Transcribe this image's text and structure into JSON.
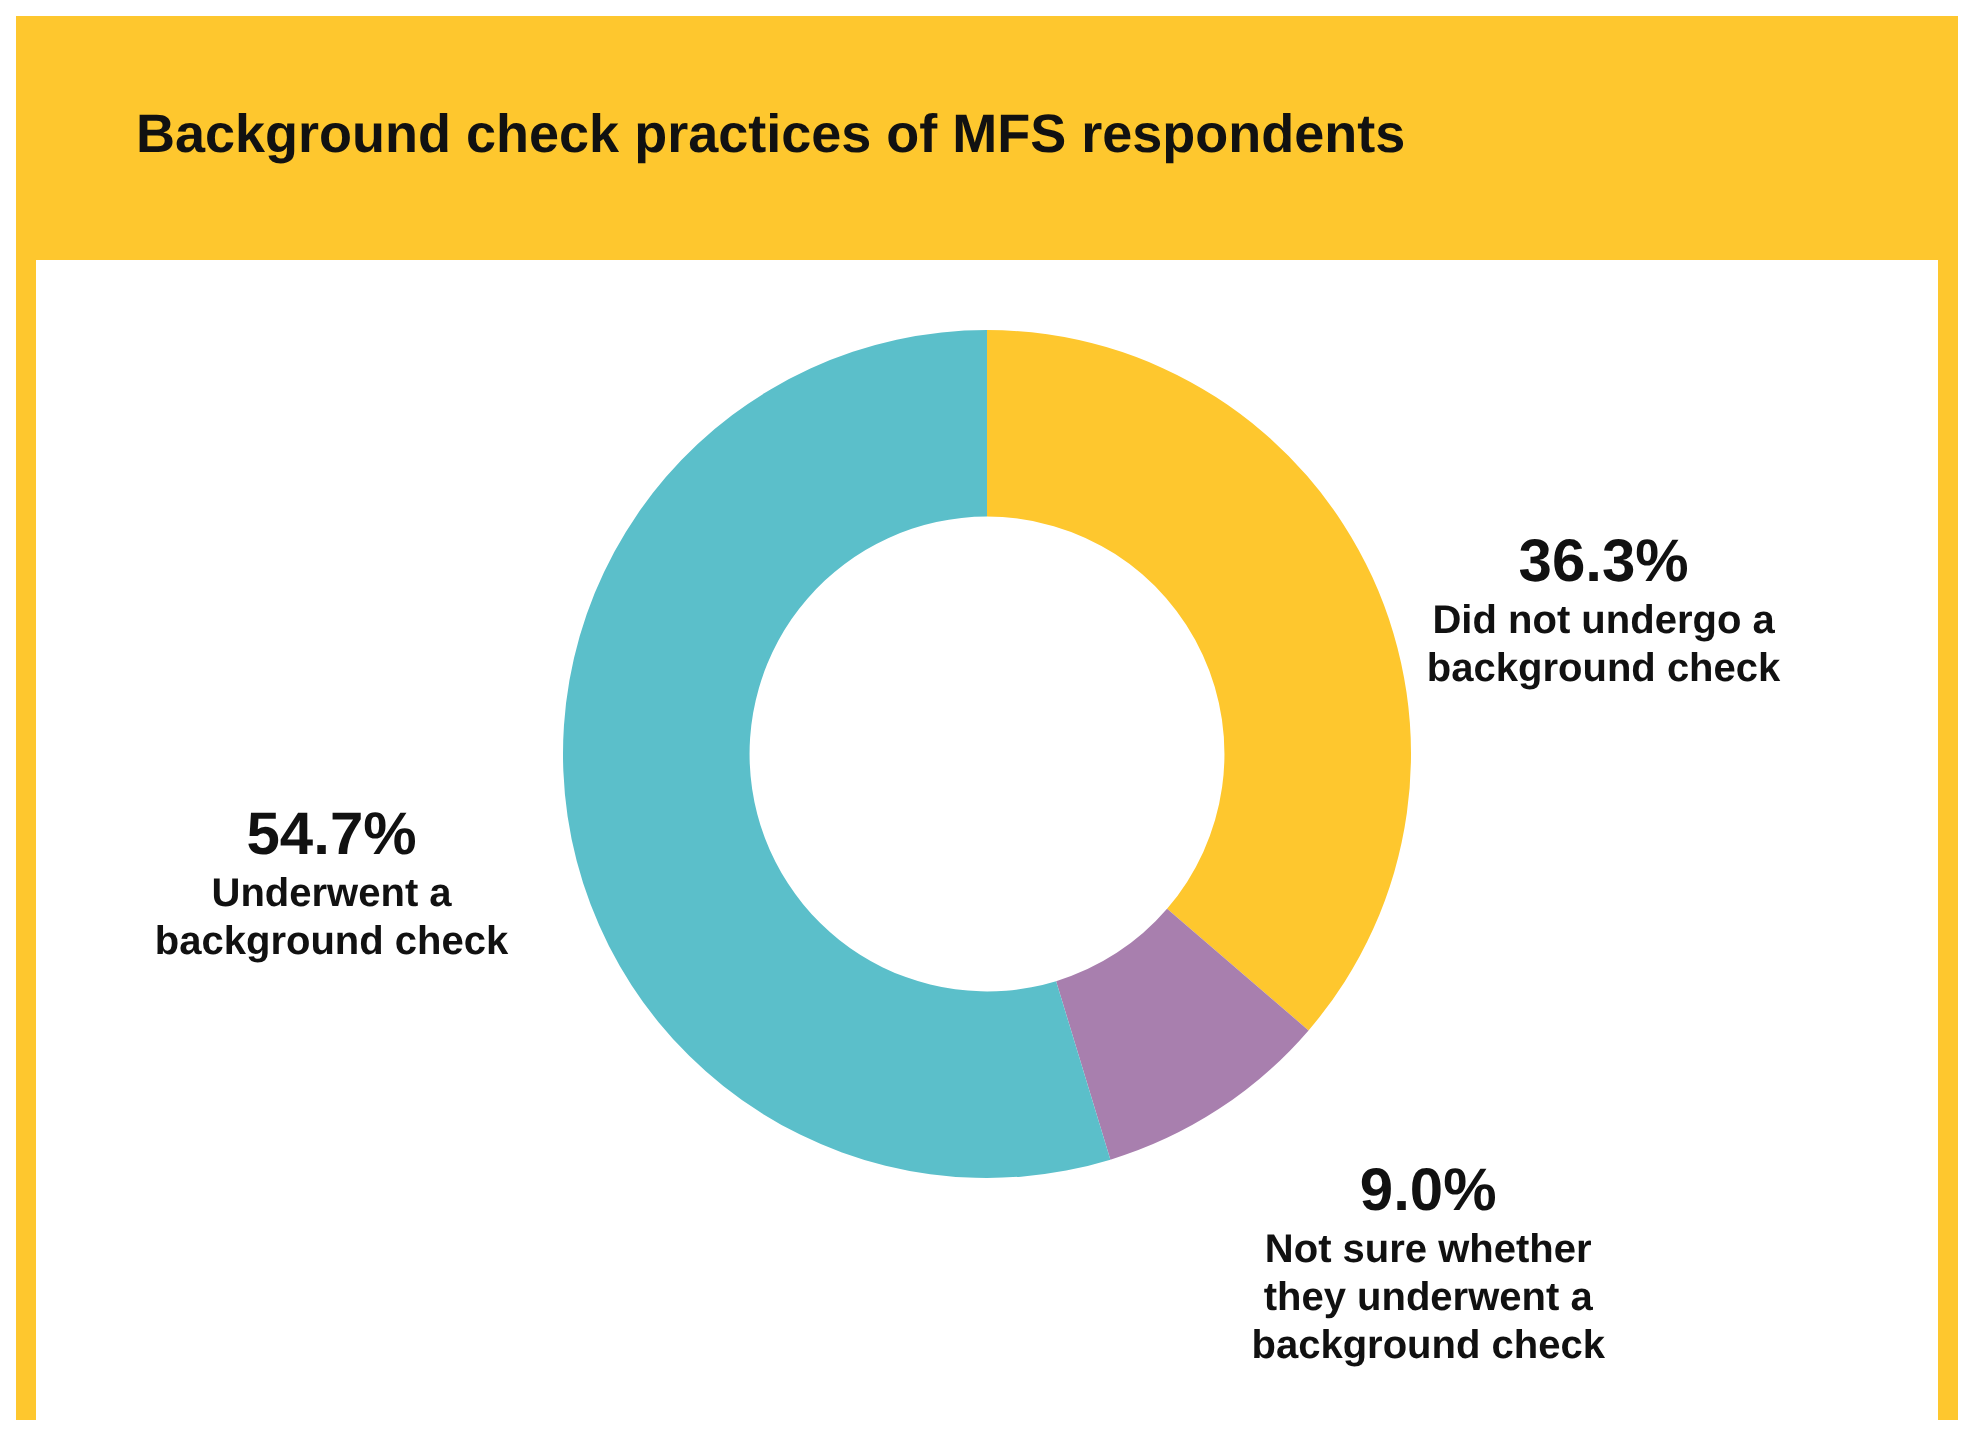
{
  "chart_data": {
    "type": "donut",
    "title": "Background check practices of MFS respondents",
    "categories": [
      "Did not undergo a background check",
      "Not sure whether they underwent a background check",
      "Underwent a background check"
    ],
    "values": [
      36.3,
      9.0,
      54.7
    ],
    "colors": [
      "#fec72e",
      "#a87fae",
      "#5bbfca"
    ],
    "value_labels": [
      "36.3%",
      "9.0%",
      "54.7%"
    ],
    "legend": false
  }
}
